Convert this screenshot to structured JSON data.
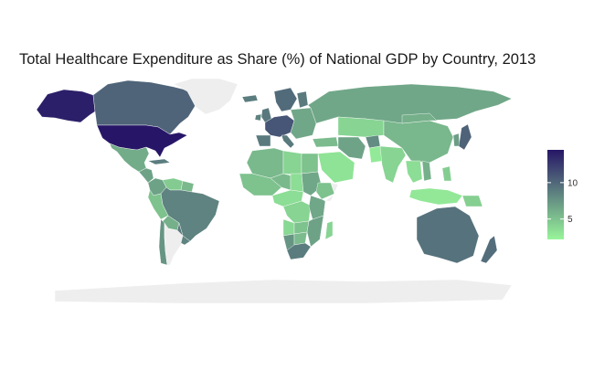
{
  "title": "Total Healthcare Expenditure as Share (%) of National GDP by Country, 2013",
  "colors": {
    "low": "#98F59A",
    "high": "#271667",
    "missing": "#EEEEEE",
    "background": "#FFFFFF"
  },
  "legend": {
    "range": [
      2.2,
      14.5
    ],
    "ticks": [
      5,
      10
    ]
  },
  "map": {
    "regions": [
      {
        "name": "Alaska",
        "value": 14.0
      },
      {
        "name": "Canada",
        "value": 10.2
      },
      {
        "name": "Greenland",
        "value": null
      },
      {
        "name": "United States",
        "value": 14.5
      },
      {
        "name": "Mexico",
        "value": 6.2
      },
      {
        "name": "Central America",
        "value": 6.8
      },
      {
        "name": "Cuba",
        "value": 8.8
      },
      {
        "name": "Colombia",
        "value": 6.8
      },
      {
        "name": "Venezuela",
        "value": 4.5
      },
      {
        "name": "Guianas",
        "value": 5.5
      },
      {
        "name": "Brazil",
        "value": 8.5
      },
      {
        "name": "Peru",
        "value": 5.0
      },
      {
        "name": "Bolivia",
        "value": 6.0
      },
      {
        "name": "Chile",
        "value": 7.5
      },
      {
        "name": "Argentina",
        "value": null
      },
      {
        "name": "Paraguay",
        "value": 9.0
      },
      {
        "name": "Uruguay",
        "value": 8.5
      },
      {
        "name": "Iceland",
        "value": 8.8
      },
      {
        "name": "Ireland",
        "value": 8.5
      },
      {
        "name": "United Kingdom",
        "value": 9.1
      },
      {
        "name": "Scandinavia",
        "value": 9.8
      },
      {
        "name": "Finland",
        "value": 9.0
      },
      {
        "name": "Western Europe",
        "value": 11.0
      },
      {
        "name": "Iberia",
        "value": 9.0
      },
      {
        "name": "Italy",
        "value": 9.0
      },
      {
        "name": "Eastern Europe",
        "value": 6.5
      },
      {
        "name": "Russia",
        "value": 6.5
      },
      {
        "name": "Turkey",
        "value": 5.4
      },
      {
        "name": "North Africa",
        "value": 5.5
      },
      {
        "name": "Libya",
        "value": 4.0
      },
      {
        "name": "Egypt",
        "value": 5.0
      },
      {
        "name": "West Africa",
        "value": 5.0
      },
      {
        "name": "Sahel",
        "value": 5.5
      },
      {
        "name": "Chad",
        "value": 3.5
      },
      {
        "name": "Sudan",
        "value": 6.5
      },
      {
        "name": "Ethiopia",
        "value": 5.0
      },
      {
        "name": "Somalia",
        "value": null
      },
      {
        "name": "Central Africa",
        "value": 3.5
      },
      {
        "name": "DR Congo",
        "value": 4.0
      },
      {
        "name": "East Africa",
        "value": 6.5
      },
      {
        "name": "Angola",
        "value": 3.8
      },
      {
        "name": "Zambia",
        "value": 5.0
      },
      {
        "name": "Mozambique",
        "value": 6.8
      },
      {
        "name": "Namibia",
        "value": 7.5
      },
      {
        "name": "Botswana",
        "value": 5.4
      },
      {
        "name": "South Africa",
        "value": 8.9
      },
      {
        "name": "Madagascar",
        "value": 4.0
      },
      {
        "name": "Saudi Arabia",
        "value": 3.2
      },
      {
        "name": "Iran",
        "value": 6.7
      },
      {
        "name": "Central Asia",
        "value": 4.0
      },
      {
        "name": "Afghanistan",
        "value": 8.0
      },
      {
        "name": "Pakistan",
        "value": 2.8
      },
      {
        "name": "India",
        "value": 4.0
      },
      {
        "name": "China",
        "value": 5.6
      },
      {
        "name": "Mongolia",
        "value": 6.0
      },
      {
        "name": "Korea",
        "value": 7.0
      },
      {
        "name": "Japan",
        "value": 10.3
      },
      {
        "name": "Southeast Asia",
        "value": 3.5
      },
      {
        "name": "Vietnam",
        "value": 6.0
      },
      {
        "name": "Philippines",
        "value": 4.4
      },
      {
        "name": "Indonesia",
        "value": 2.9
      },
      {
        "name": "Papua New Guinea",
        "value": 4.3
      },
      {
        "name": "Australia",
        "value": 9.4
      },
      {
        "name": "New Zealand",
        "value": 9.7
      },
      {
        "name": "Antarctica",
        "value": null
      }
    ]
  }
}
